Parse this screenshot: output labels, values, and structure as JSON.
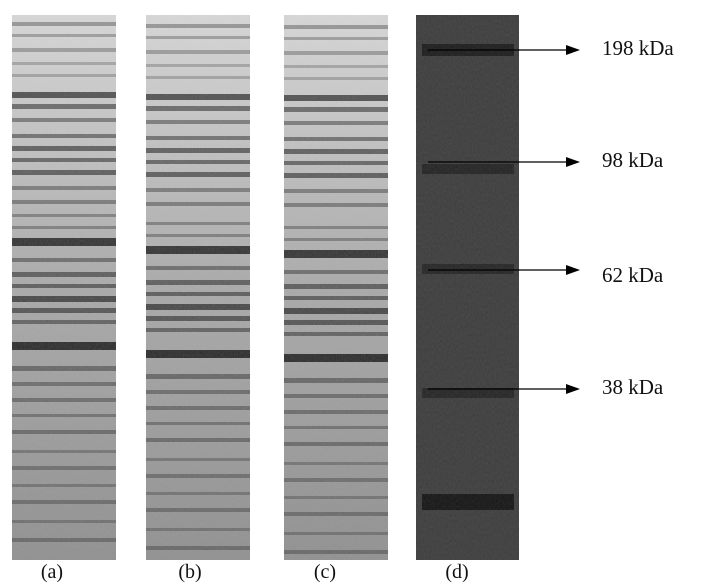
{
  "lanes": [
    {
      "label": "(a)"
    },
    {
      "label": "(b)"
    },
    {
      "label": "(c)"
    },
    {
      "label": "(d)"
    }
  ],
  "markers": [
    {
      "label": "198 kDa"
    },
    {
      "label": "98 kDa"
    },
    {
      "label": "62 kDa"
    },
    {
      "label": "38 kDa"
    }
  ]
}
